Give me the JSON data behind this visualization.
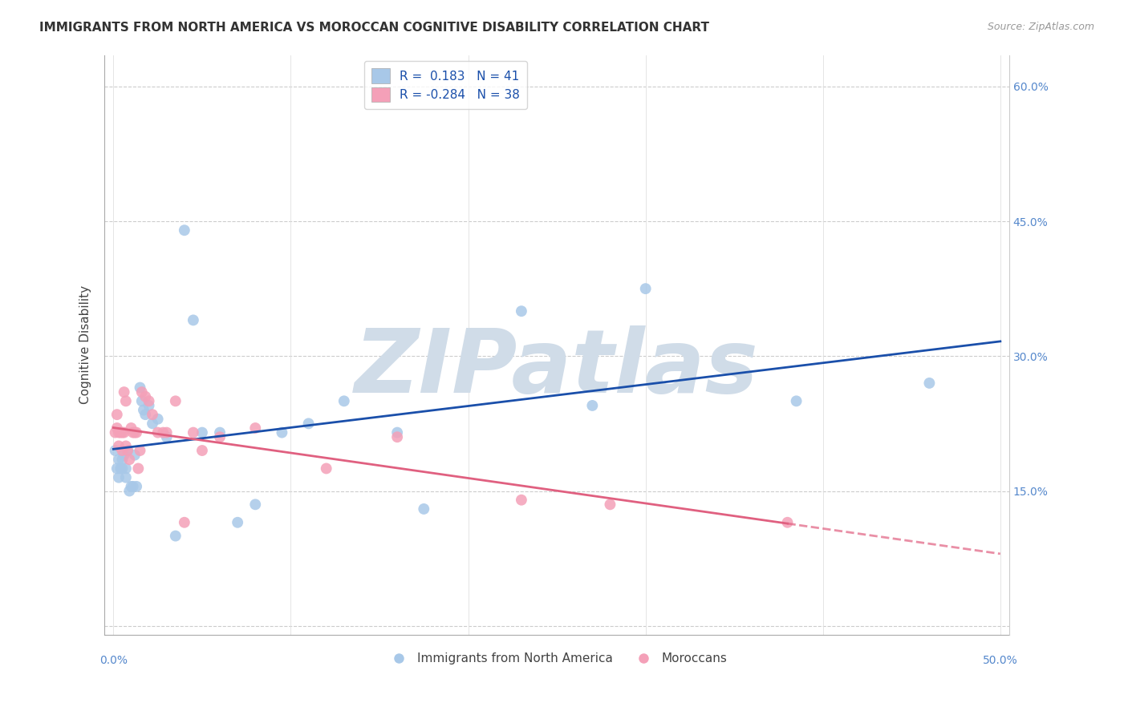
{
  "title": "IMMIGRANTS FROM NORTH AMERICA VS MOROCCAN COGNITIVE DISABILITY CORRELATION CHART",
  "source": "Source: ZipAtlas.com",
  "ylabel": "Cognitive Disability",
  "x_ticks": [
    0.0,
    0.1,
    0.2,
    0.3,
    0.4,
    0.5
  ],
  "x_tick_labels": [
    "0.0%",
    "",
    "",
    "",
    "",
    "50.0%"
  ],
  "y_ticks": [
    0.0,
    0.15,
    0.3,
    0.45,
    0.6
  ],
  "y_tick_labels_right": [
    "",
    "15.0%",
    "30.0%",
    "45.0%",
    "60.0%"
  ],
  "xlim": [
    -0.005,
    0.505
  ],
  "ylim": [
    -0.01,
    0.635
  ],
  "blue_R": 0.183,
  "blue_N": 41,
  "pink_R": -0.284,
  "pink_N": 38,
  "blue_color": "#a8c8e8",
  "pink_color": "#f4a0b8",
  "blue_line_color": "#1a4faa",
  "pink_line_color": "#e06080",
  "legend_label_blue": "Immigrants from North America",
  "legend_label_pink": "Moroccans",
  "watermark": "ZIPatlas",
  "watermark_color": "#d0dce8",
  "grid_color": "#cccccc",
  "blue_x": [
    0.001,
    0.002,
    0.003,
    0.003,
    0.004,
    0.005,
    0.005,
    0.006,
    0.007,
    0.007,
    0.008,
    0.009,
    0.01,
    0.011,
    0.012,
    0.013,
    0.015,
    0.016,
    0.017,
    0.018,
    0.02,
    0.022,
    0.025,
    0.03,
    0.035,
    0.04,
    0.045,
    0.05,
    0.06,
    0.07,
    0.08,
    0.095,
    0.11,
    0.13,
    0.16,
    0.175,
    0.23,
    0.27,
    0.3,
    0.385,
    0.46
  ],
  "blue_y": [
    0.195,
    0.175,
    0.185,
    0.165,
    0.175,
    0.185,
    0.175,
    0.19,
    0.175,
    0.165,
    0.195,
    0.15,
    0.155,
    0.155,
    0.19,
    0.155,
    0.265,
    0.25,
    0.24,
    0.235,
    0.245,
    0.225,
    0.23,
    0.21,
    0.1,
    0.44,
    0.34,
    0.215,
    0.215,
    0.115,
    0.135,
    0.215,
    0.225,
    0.25,
    0.215,
    0.13,
    0.35,
    0.245,
    0.375,
    0.25,
    0.27
  ],
  "pink_x": [
    0.001,
    0.002,
    0.002,
    0.003,
    0.003,
    0.004,
    0.005,
    0.005,
    0.006,
    0.006,
    0.007,
    0.007,
    0.008,
    0.009,
    0.01,
    0.011,
    0.012,
    0.013,
    0.014,
    0.015,
    0.016,
    0.018,
    0.02,
    0.022,
    0.025,
    0.028,
    0.03,
    0.035,
    0.04,
    0.045,
    0.05,
    0.06,
    0.08,
    0.12,
    0.16,
    0.23,
    0.28,
    0.38
  ],
  "pink_y": [
    0.215,
    0.235,
    0.22,
    0.215,
    0.2,
    0.215,
    0.215,
    0.195,
    0.26,
    0.215,
    0.25,
    0.2,
    0.195,
    0.185,
    0.22,
    0.215,
    0.215,
    0.215,
    0.175,
    0.195,
    0.26,
    0.255,
    0.25,
    0.235,
    0.215,
    0.215,
    0.215,
    0.25,
    0.115,
    0.215,
    0.195,
    0.21,
    0.22,
    0.175,
    0.21,
    0.14,
    0.135,
    0.115
  ]
}
